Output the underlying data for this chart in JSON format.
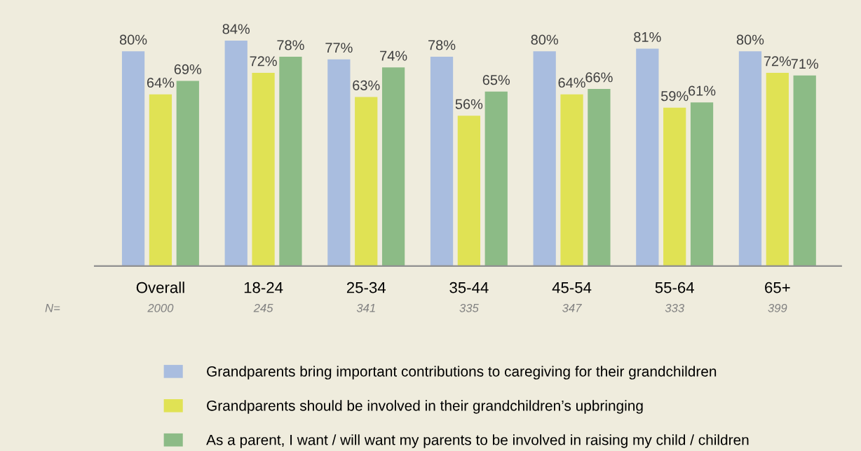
{
  "chart_data": {
    "type": "bar",
    "categories": [
      "Overall",
      "18-24",
      "25-34",
      "35-44",
      "45-54",
      "55-64",
      "65+"
    ],
    "series": [
      {
        "name": "Grandparents bring important contributions to caregiving for their grandchildren",
        "color": "#a9bddf",
        "values": [
          80,
          84,
          77,
          78,
          80,
          81,
          80
        ],
        "value_labels": [
          "80%",
          "84%",
          "77%",
          "78%",
          "80%",
          "81%",
          "80%"
        ]
      },
      {
        "name": "Grandparents should be involved in their grandchildren’s upbringing",
        "color": "#e0e254",
        "values": [
          64,
          72,
          63,
          56,
          64,
          59,
          72
        ],
        "value_labels": [
          "64%",
          "72%",
          "63%",
          "56%",
          "64%",
          "59%",
          "72%"
        ]
      },
      {
        "name": "As a parent, I want / will want my parents to be involved in raising my child / children",
        "color": "#8cbb86",
        "values": [
          69,
          78,
          74,
          65,
          66,
          61,
          71
        ],
        "value_labels": [
          "69%",
          "78%",
          "74%",
          "65%",
          "66%",
          "61%",
          "71%"
        ]
      }
    ],
    "annotations": [
      "N=",
      "2000",
      "245",
      "341",
      "335",
      "347",
      "333",
      "399"
    ],
    "tick_labels": "x",
    "grid": false,
    "legend": "bottom"
  }
}
